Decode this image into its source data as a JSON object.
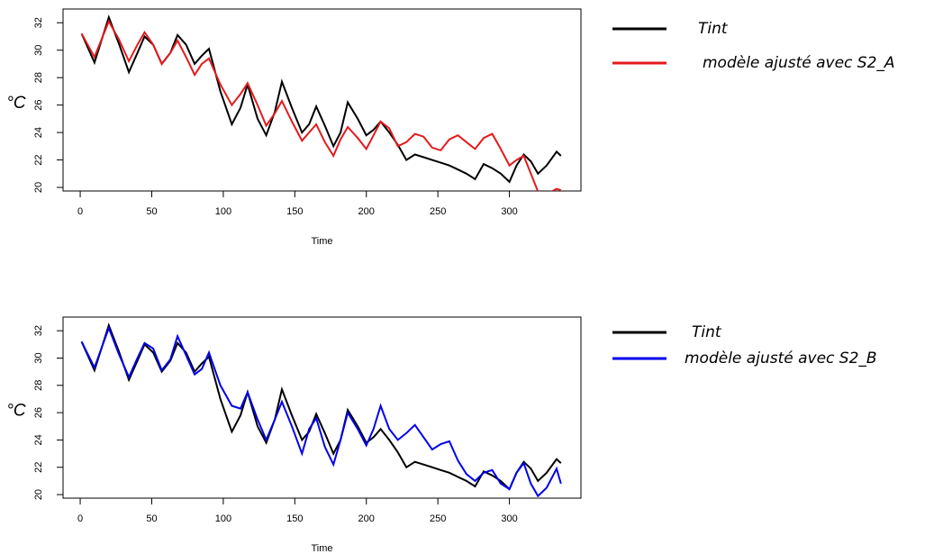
{
  "chart_data": [
    {
      "type": "line",
      "xlabel": "Time",
      "ylabel": "°C",
      "xlim": [
        -12,
        350
      ],
      "ylim": [
        19.74,
        33.0
      ],
      "xticks": [
        0,
        50,
        100,
        150,
        200,
        250,
        300
      ],
      "yticks": [
        20,
        22,
        24,
        26,
        28,
        30,
        32
      ],
      "x": [
        1,
        10,
        20,
        27,
        34,
        40,
        45,
        51,
        57,
        63,
        68,
        74,
        80,
        85,
        90,
        98,
        106,
        112,
        117,
        124,
        130,
        136,
        141,
        148,
        155,
        160,
        165,
        171,
        177,
        182,
        187,
        194,
        200,
        205,
        210,
        216,
        222,
        228,
        234,
        240,
        246,
        252,
        258,
        264,
        270,
        276,
        282,
        288,
        294,
        300,
        305,
        310,
        315,
        320,
        326,
        333,
        336
      ],
      "series": [
        {
          "name": "Tint",
          "color": "#000000",
          "values": [
            31.2,
            29.1,
            32.4,
            30.5,
            28.4,
            29.8,
            31.0,
            30.4,
            29.0,
            29.8,
            31.1,
            30.4,
            29.0,
            29.6,
            30.1,
            27.0,
            24.6,
            25.8,
            27.5,
            25.0,
            23.8,
            25.5,
            27.7,
            25.8,
            24.0,
            24.6,
            25.9,
            24.5,
            23.0,
            24.0,
            26.2,
            25.0,
            23.8,
            24.2,
            24.8,
            24.0,
            23.1,
            22.0,
            22.4,
            22.2,
            22.0,
            21.8,
            21.6,
            21.3,
            21.0,
            20.6,
            21.7,
            21.4,
            21.0,
            20.4,
            21.6,
            22.4,
            21.9,
            21.0,
            21.6,
            22.6,
            22.3
          ]
        },
        {
          "name": "modèle ajusté avec  S2_A",
          "color": "#e41a1c",
          "values": [
            31.2,
            29.5,
            32.1,
            30.8,
            29.2,
            30.4,
            31.3,
            30.4,
            29.0,
            29.8,
            30.7,
            29.5,
            28.2,
            29.0,
            29.4,
            27.5,
            26.0,
            26.8,
            27.6,
            26.0,
            24.5,
            25.4,
            26.3,
            24.8,
            23.4,
            24.0,
            24.6,
            23.3,
            22.3,
            23.5,
            24.4,
            23.6,
            22.8,
            23.8,
            24.8,
            24.3,
            23.0,
            23.3,
            23.9,
            23.7,
            22.9,
            22.7,
            23.5,
            23.8,
            23.3,
            22.8,
            23.6,
            23.9,
            22.8,
            21.6,
            22.0,
            22.3,
            21.0,
            19.7,
            19.5,
            19.9,
            19.8
          ]
        }
      ]
    },
    {
      "type": "line",
      "xlabel": "Time",
      "ylabel": "°C",
      "xlim": [
        -12,
        350
      ],
      "ylim": [
        19.74,
        33.0
      ],
      "xticks": [
        0,
        50,
        100,
        150,
        200,
        250,
        300
      ],
      "yticks": [
        20,
        22,
        24,
        26,
        28,
        30,
        32
      ],
      "x": [
        1,
        10,
        20,
        27,
        34,
        40,
        45,
        51,
        57,
        63,
        68,
        74,
        80,
        85,
        90,
        98,
        106,
        112,
        117,
        124,
        130,
        136,
        141,
        148,
        155,
        160,
        165,
        171,
        177,
        182,
        187,
        194,
        200,
        205,
        210,
        216,
        222,
        228,
        234,
        240,
        246,
        252,
        258,
        264,
        270,
        276,
        282,
        288,
        294,
        300,
        305,
        310,
        315,
        320,
        326,
        333,
        336
      ],
      "series": [
        {
          "name": "Tint",
          "color": "#000000",
          "values": [
            31.2,
            29.1,
            32.4,
            30.5,
            28.4,
            29.8,
            31.0,
            30.4,
            29.0,
            29.8,
            31.1,
            30.4,
            29.0,
            29.6,
            30.1,
            27.0,
            24.6,
            25.8,
            27.5,
            25.0,
            23.8,
            25.5,
            27.7,
            25.8,
            24.0,
            24.6,
            25.9,
            24.5,
            23.0,
            24.0,
            26.2,
            25.0,
            23.8,
            24.2,
            24.8,
            24.0,
            23.1,
            22.0,
            22.4,
            22.2,
            22.0,
            21.8,
            21.6,
            21.3,
            21.0,
            20.6,
            21.7,
            21.4,
            21.0,
            20.4,
            21.6,
            22.4,
            21.9,
            21.0,
            21.6,
            22.6,
            22.3
          ]
        },
        {
          "name": "modèle ajusté avec  S2_B",
          "color": "#0000ee",
          "values": [
            31.2,
            29.3,
            32.2,
            30.3,
            28.6,
            30.0,
            31.1,
            30.7,
            29.1,
            29.9,
            31.6,
            30.2,
            28.8,
            29.2,
            30.4,
            28.0,
            26.5,
            26.3,
            27.5,
            25.5,
            24.0,
            25.5,
            26.8,
            25.0,
            23.0,
            24.8,
            25.6,
            23.5,
            22.2,
            24.0,
            26.0,
            24.8,
            23.6,
            24.8,
            26.5,
            24.8,
            24.0,
            24.5,
            25.1,
            24.2,
            23.3,
            23.7,
            23.9,
            22.5,
            21.5,
            21.0,
            21.6,
            21.8,
            20.8,
            20.4,
            21.6,
            22.3,
            20.8,
            19.9,
            20.5,
            21.9,
            20.8
          ]
        }
      ]
    }
  ]
}
